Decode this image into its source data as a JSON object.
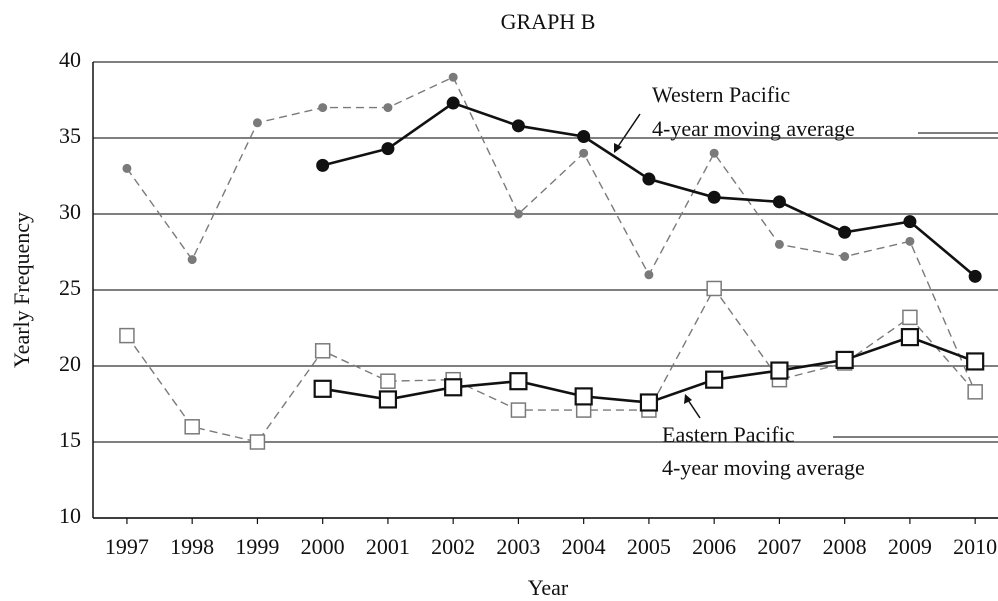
{
  "chart_data": {
    "type": "line",
    "title": "GRAPH B",
    "x_label": "Year",
    "y_label": "Yearly Frequency",
    "x": [
      1997,
      1998,
      1999,
      2000,
      2001,
      2002,
      2003,
      2004,
      2005,
      2006,
      2007,
      2008,
      2009,
      2010
    ],
    "xlim": [
      1996.48,
      2010.35
    ],
    "xticks": [
      1997,
      1998,
      1999,
      2000,
      2001,
      2002,
      2003,
      2004,
      2005,
      2006,
      2007,
      2008,
      2009,
      2010
    ],
    "ylim": [
      10,
      40
    ],
    "yticks": [
      10,
      15,
      20,
      25,
      30,
      35,
      40
    ],
    "grid": true,
    "series": [
      {
        "color": "#7a7a7a",
        "dashed": true,
        "marker": "circle",
        "filled": true,
        "values": [
          33,
          27,
          36,
          37,
          37,
          39,
          30,
          34,
          26,
          34,
          28,
          27.2,
          28.2,
          18.3
        ]
      },
      {
        "color": "#111111",
        "dashed": false,
        "marker": "circle",
        "filled": true,
        "values": [
          null,
          null,
          null,
          33.2,
          34.3,
          37.3,
          35.8,
          35.1,
          32.3,
          31.1,
          30.8,
          28.8,
          29.5,
          25.9
        ]
      },
      {
        "color": "#7a7a7a",
        "dashed": true,
        "marker": "square",
        "filled": false,
        "values": [
          22,
          16,
          15,
          21,
          19,
          19.1,
          17.1,
          17.1,
          17.1,
          25.1,
          19.1,
          20.2,
          23.2,
          18.3
        ]
      },
      {
        "color": "#111111",
        "dashed": false,
        "marker": "square",
        "filled": false,
        "values": [
          null,
          null,
          null,
          18.5,
          17.8,
          18.6,
          19.0,
          18.0,
          17.6,
          19.1,
          19.7,
          20.4,
          21.9,
          20.3
        ]
      }
    ],
    "annotations": [
      {
        "lines": [
          "Western Pacific",
          "4-year moving average"
        ]
      },
      {
        "lines": [
          "Eastern Pacific",
          "4-year moving average"
        ]
      }
    ]
  }
}
